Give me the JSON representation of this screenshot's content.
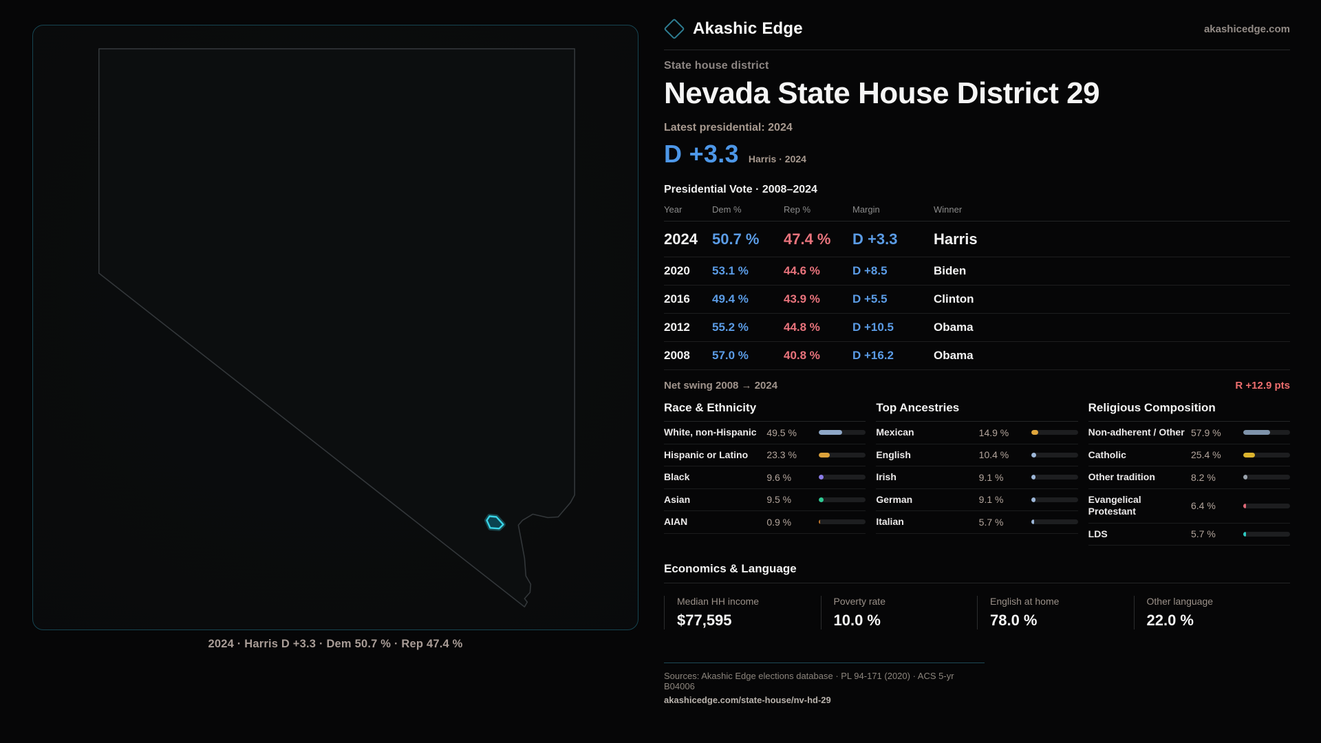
{
  "brand": {
    "name": "Akashic Edge",
    "site": "akashicedge.com",
    "logo_icon": "diamond-icon"
  },
  "page": {
    "kicker": "State house district",
    "title": "Nevada State House District 29"
  },
  "headline": {
    "label": "Latest presidential: 2024",
    "margin": "D +3.3",
    "sub": "Harris · 2024"
  },
  "vote_table": {
    "title": "Presidential Vote · 2008–2024",
    "columns": {
      "year": "Year",
      "dem": "Dem %",
      "rep": "Rep %",
      "margin": "Margin",
      "winner": "Winner"
    },
    "rows": [
      {
        "year": "2024",
        "dem": "50.7 %",
        "rep": "47.4 %",
        "margin": "D +3.3",
        "winner": "Harris"
      },
      {
        "year": "2020",
        "dem": "53.1 %",
        "rep": "44.6 %",
        "margin": "D +8.5",
        "winner": "Biden"
      },
      {
        "year": "2016",
        "dem": "49.4 %",
        "rep": "43.9 %",
        "margin": "D +5.5",
        "winner": "Clinton"
      },
      {
        "year": "2012",
        "dem": "55.2 %",
        "rep": "44.8 %",
        "margin": "D +10.5",
        "winner": "Obama"
      },
      {
        "year": "2008",
        "dem": "57.0 %",
        "rep": "40.8 %",
        "margin": "D +16.2",
        "winner": "Obama"
      }
    ]
  },
  "net_swing": {
    "label": "Net swing 2008 → 2024",
    "value": "R +12.9 pts"
  },
  "demographics": [
    {
      "title": "Race & Ethnicity",
      "rows": [
        {
          "label": "White, non-Hispanic",
          "value": "49.5 %",
          "pct": 49.5,
          "color": "#8ea7c7"
        },
        {
          "label": "Hispanic or Latino",
          "value": "23.3 %",
          "pct": 23.3,
          "color": "#dca13a"
        },
        {
          "label": "Black",
          "value": "9.6 %",
          "pct": 9.6,
          "color": "#8b7ce8"
        },
        {
          "label": "Asian",
          "value": "9.5 %",
          "pct": 9.5,
          "color": "#2ec993"
        },
        {
          "label": "AIAN",
          "value": "0.9 %",
          "pct": 0.9,
          "color": "#c0762c"
        }
      ]
    },
    {
      "title": "Top Ancestries",
      "rows": [
        {
          "label": "Mexican",
          "value": "14.9 %",
          "pct": 14.9,
          "color": "#e0a63c"
        },
        {
          "label": "English",
          "value": "10.4 %",
          "pct": 10.4,
          "color": "#9db7d8"
        },
        {
          "label": "Irish",
          "value": "9.1 %",
          "pct": 9.1,
          "color": "#9db7d8"
        },
        {
          "label": "German",
          "value": "9.1 %",
          "pct": 9.1,
          "color": "#9db7d8"
        },
        {
          "label": "Italian",
          "value": "5.7 %",
          "pct": 5.7,
          "color": "#9db7d8"
        }
      ]
    },
    {
      "title": "Religious Composition",
      "rows": [
        {
          "label": "Non-adherent / Other",
          "value": "57.9 %",
          "pct": 57.9,
          "color": "#7e93ab"
        },
        {
          "label": "Catholic",
          "value": "25.4 %",
          "pct": 25.4,
          "color": "#dcb42e"
        },
        {
          "label": "Other tradition",
          "value": "8.2 %",
          "pct": 8.2,
          "color": "#9aa3ad"
        },
        {
          "label": "Evangelical Protestant",
          "value": "6.4 %",
          "pct": 6.4,
          "color": "#e06a78"
        },
        {
          "label": "LDS",
          "value": "5.7 %",
          "pct": 5.7,
          "color": "#2fc9c2"
        }
      ]
    }
  ],
  "economics": {
    "title": "Economics & Language",
    "stats": [
      {
        "label": "Median HH income",
        "value": "$77,595"
      },
      {
        "label": "Poverty rate",
        "value": "10.0 %"
      },
      {
        "label": "English at home",
        "value": "78.0 %"
      },
      {
        "label": "Other language",
        "value": "22.0 %"
      }
    ]
  },
  "map": {
    "caption": "2024 · Harris D +3.3 · Dem 50.7 % · Rep 47.4 %",
    "state": "Nevada",
    "district_color": "#39d5e8"
  },
  "footer": {
    "sources": "Sources: Akashic Edge elections database · PL 94-171 (2020) · ACS 5-yr B04006",
    "url": "akashicedge.com/state-house/nv-hd-29"
  },
  "colors": {
    "dem": "#5b9ce6",
    "rep": "#e8737c",
    "accent_teal": "#39d5e8",
    "swing_red": "#ed6e6e"
  },
  "chart_data": [
    {
      "type": "table",
      "title": "Presidential Vote · 2008–2024",
      "columns": [
        "Year",
        "Dem %",
        "Rep %",
        "Margin",
        "Winner"
      ],
      "rows": [
        [
          "2024",
          50.7,
          47.4,
          "D +3.3",
          "Harris"
        ],
        [
          "2020",
          53.1,
          44.6,
          "D +8.5",
          "Biden"
        ],
        [
          "2016",
          49.4,
          43.9,
          "D +5.5",
          "Clinton"
        ],
        [
          "2012",
          55.2,
          44.8,
          "D +10.5",
          "Obama"
        ],
        [
          "2008",
          57.0,
          40.8,
          "D +16.2",
          "Obama"
        ]
      ]
    },
    {
      "type": "bar",
      "title": "Race & Ethnicity",
      "categories": [
        "White, non-Hispanic",
        "Hispanic or Latino",
        "Black",
        "Asian",
        "AIAN"
      ],
      "values": [
        49.5,
        23.3,
        9.6,
        9.5,
        0.9
      ],
      "xlim": [
        0,
        100
      ],
      "unit": "%"
    },
    {
      "type": "bar",
      "title": "Top Ancestries",
      "categories": [
        "Mexican",
        "English",
        "Irish",
        "German",
        "Italian"
      ],
      "values": [
        14.9,
        10.4,
        9.1,
        9.1,
        5.7
      ],
      "xlim": [
        0,
        100
      ],
      "unit": "%"
    },
    {
      "type": "bar",
      "title": "Religious Composition",
      "categories": [
        "Non-adherent / Other",
        "Catholic",
        "Other tradition",
        "Evangelical Protestant",
        "LDS"
      ],
      "values": [
        57.9,
        25.4,
        8.2,
        6.4,
        5.7
      ],
      "xlim": [
        0,
        100
      ],
      "unit": "%"
    },
    {
      "type": "bar",
      "title": "Economics & Language",
      "categories": [
        "Median HH income ($)",
        "Poverty rate %",
        "English at home %",
        "Other language %"
      ],
      "values": [
        77595,
        10.0,
        78.0,
        22.0
      ]
    }
  ]
}
